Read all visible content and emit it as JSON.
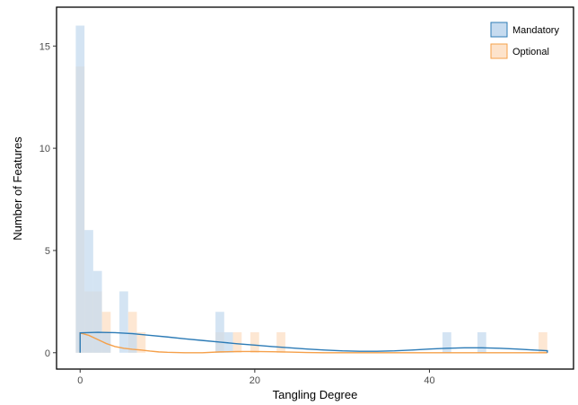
{
  "chart_data": {
    "type": "histogram",
    "title": "",
    "xlabel": "Tangling Degree",
    "ylabel": "Number of Features",
    "xlim": [
      -2.7,
      56.5
    ],
    "ylim": [
      -0.8,
      16.9
    ],
    "x_ticks": [
      0,
      20,
      40
    ],
    "y_ticks": [
      0,
      5,
      10,
      15
    ],
    "grid": false,
    "legend_position": "top-right",
    "bin_width": 1,
    "series": [
      {
        "name": "Mandatory",
        "color": "#2c7bb6",
        "fill": "#c6dbef",
        "bins": [
          {
            "x": 0,
            "count": 16
          },
          {
            "x": 1,
            "count": 6
          },
          {
            "x": 2,
            "count": 4
          },
          {
            "x": 3,
            "count": 1
          },
          {
            "x": 5,
            "count": 3
          },
          {
            "x": 6,
            "count": 1
          },
          {
            "x": 16,
            "count": 2
          },
          {
            "x": 17,
            "count": 1
          },
          {
            "x": 42,
            "count": 1
          },
          {
            "x": 46,
            "count": 1
          }
        ],
        "density": [
          [
            0,
            0.97
          ],
          [
            2,
            1.0
          ],
          [
            4,
            0.98
          ],
          [
            6,
            0.93
          ],
          [
            8,
            0.85
          ],
          [
            10,
            0.77
          ],
          [
            12,
            0.68
          ],
          [
            14,
            0.6
          ],
          [
            16,
            0.52
          ],
          [
            18,
            0.44
          ],
          [
            20,
            0.37
          ],
          [
            22,
            0.3
          ],
          [
            24,
            0.24
          ],
          [
            26,
            0.18
          ],
          [
            28,
            0.13
          ],
          [
            30,
            0.09
          ],
          [
            32,
            0.07
          ],
          [
            34,
            0.07
          ],
          [
            36,
            0.09
          ],
          [
            38,
            0.13
          ],
          [
            40,
            0.18
          ],
          [
            42,
            0.22
          ],
          [
            44,
            0.24
          ],
          [
            46,
            0.24
          ],
          [
            48,
            0.22
          ],
          [
            50,
            0.18
          ],
          [
            52,
            0.13
          ],
          [
            53.5,
            0.1
          ]
        ]
      },
      {
        "name": "Optional",
        "color": "#f5a04a",
        "fill": "#fde3cb",
        "bins": [
          {
            "x": 0,
            "count": 14
          },
          {
            "x": 1,
            "count": 3
          },
          {
            "x": 2,
            "count": 3
          },
          {
            "x": 3,
            "count": 2
          },
          {
            "x": 6,
            "count": 2
          },
          {
            "x": 7,
            "count": 1
          },
          {
            "x": 16,
            "count": 1
          },
          {
            "x": 18,
            "count": 1
          },
          {
            "x": 20,
            "count": 1
          },
          {
            "x": 23,
            "count": 1
          },
          {
            "x": 53,
            "count": 1
          }
        ],
        "density": [
          [
            0,
            0.97
          ],
          [
            1,
            0.85
          ],
          [
            2,
            0.65
          ],
          [
            3,
            0.45
          ],
          [
            4,
            0.3
          ],
          [
            5,
            0.22
          ],
          [
            6,
            0.17
          ],
          [
            7,
            0.13
          ],
          [
            8,
            0.08
          ],
          [
            9,
            0.04
          ],
          [
            10,
            0.02
          ],
          [
            12,
            0.0
          ],
          [
            14,
            0.0
          ],
          [
            16,
            0.04
          ],
          [
            18,
            0.06
          ],
          [
            20,
            0.06
          ],
          [
            22,
            0.05
          ],
          [
            24,
            0.03
          ],
          [
            26,
            0.01
          ],
          [
            28,
            0.0
          ],
          [
            53.5,
            0.0
          ]
        ]
      }
    ]
  }
}
